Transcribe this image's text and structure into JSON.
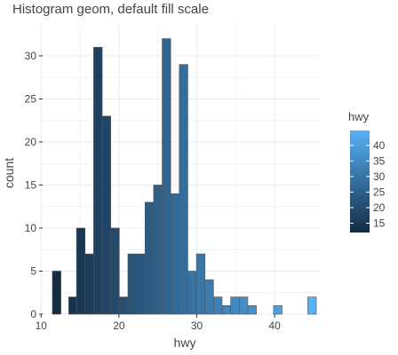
{
  "chart_data": {
    "type": "bar",
    "title": "Histogram geom, default fill scale",
    "xlabel": "hwy",
    "ylabel": "count",
    "xlim": [
      10.2,
      45.8
    ],
    "ylim": [
      0,
      33.6
    ],
    "x_ticks": [
      10,
      20,
      30,
      40
    ],
    "y_ticks": [
      0,
      5,
      10,
      15,
      20,
      25,
      30
    ],
    "grid": true,
    "legend_position": "right",
    "bin_width": 1.1,
    "bins": [
      {
        "x": 12.0,
        "count": 5
      },
      {
        "x": 14.1,
        "count": 2
      },
      {
        "x": 15.1,
        "count": 10
      },
      {
        "x": 16.2,
        "count": 7
      },
      {
        "x": 17.3,
        "count": 31
      },
      {
        "x": 18.4,
        "count": 23
      },
      {
        "x": 19.5,
        "count": 10
      },
      {
        "x": 20.6,
        "count": 2
      },
      {
        "x": 21.7,
        "count": 7
      },
      {
        "x": 22.8,
        "count": 7
      },
      {
        "x": 23.9,
        "count": 13
      },
      {
        "x": 25.0,
        "count": 15
      },
      {
        "x": 26.1,
        "count": 32
      },
      {
        "x": 27.2,
        "count": 14
      },
      {
        "x": 28.3,
        "count": 29
      },
      {
        "x": 29.4,
        "count": 5
      },
      {
        "x": 30.5,
        "count": 7
      },
      {
        "x": 31.6,
        "count": 4
      },
      {
        "x": 32.7,
        "count": 2
      },
      {
        "x": 33.8,
        "count": 1
      },
      {
        "x": 34.9,
        "count": 2
      },
      {
        "x": 36.0,
        "count": 2
      },
      {
        "x": 37.1,
        "count": 1
      },
      {
        "x": 40.4,
        "count": 1
      },
      {
        "x": 44.8,
        "count": 2
      }
    ],
    "legend": {
      "title": "hwy",
      "min": 12,
      "max": 44.8,
      "ticks": [
        15,
        20,
        25,
        30,
        35,
        40
      ]
    },
    "colors": {
      "low": "#132B43",
      "high": "#56B1F7",
      "bar_outline": "#555555",
      "grid": "#ebebeb",
      "text": "#444444"
    }
  }
}
